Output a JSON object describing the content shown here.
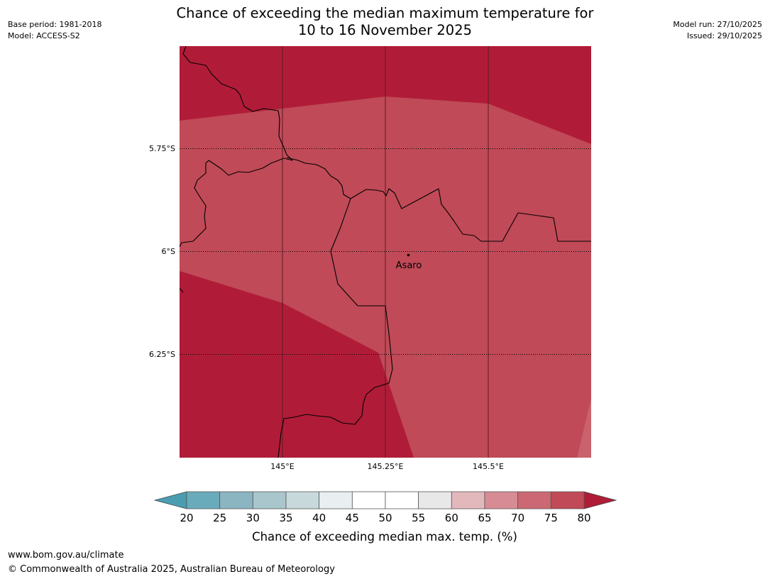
{
  "header": {
    "title_line1": "Chance of exceeding the median maximum temperature for",
    "title_line2": "10 to 16 November 2025",
    "base_period": "Base period: 1981-2018",
    "model": "Model: ACCESS-S2",
    "model_run": "Model run: 27/10/2025",
    "issued": "Issued: 29/10/2025"
  },
  "map": {
    "lat_labels": [
      "5.75°S",
      "6°S",
      "6.25°S"
    ],
    "lon_labels": [
      "145°E",
      "145.25°E",
      "145.5°E"
    ],
    "place": {
      "name": "Asaro"
    },
    "fill_colors": {
      "band_75_80": "#c04a57",
      "above_80": "#b01c38",
      "band_70_75": "#c9626d"
    },
    "line_color": "#000000"
  },
  "colorbar": {
    "label": "Chance of exceeding median max. temp. (%)",
    "ticks": [
      "20",
      "25",
      "30",
      "35",
      "40",
      "45",
      "50",
      "55",
      "60",
      "65",
      "70",
      "75",
      "80"
    ],
    "under_color": "#4a9db0",
    "over_color": "#b01c38",
    "colors": [
      "#6aabbb",
      "#8cb5c2",
      "#a8c6cc",
      "#c8d9dc",
      "#e9eff1",
      "#ffffff",
      "#ffffff",
      "#e8e8e8",
      "#e3b8bd",
      "#d78c95",
      "#cc6873",
      "#c04a57"
    ]
  },
  "footer": {
    "url": "www.bom.gov.au/climate",
    "copyright": "© Commonwealth of Australia 2025, Australian Bureau of Meteorology"
  }
}
